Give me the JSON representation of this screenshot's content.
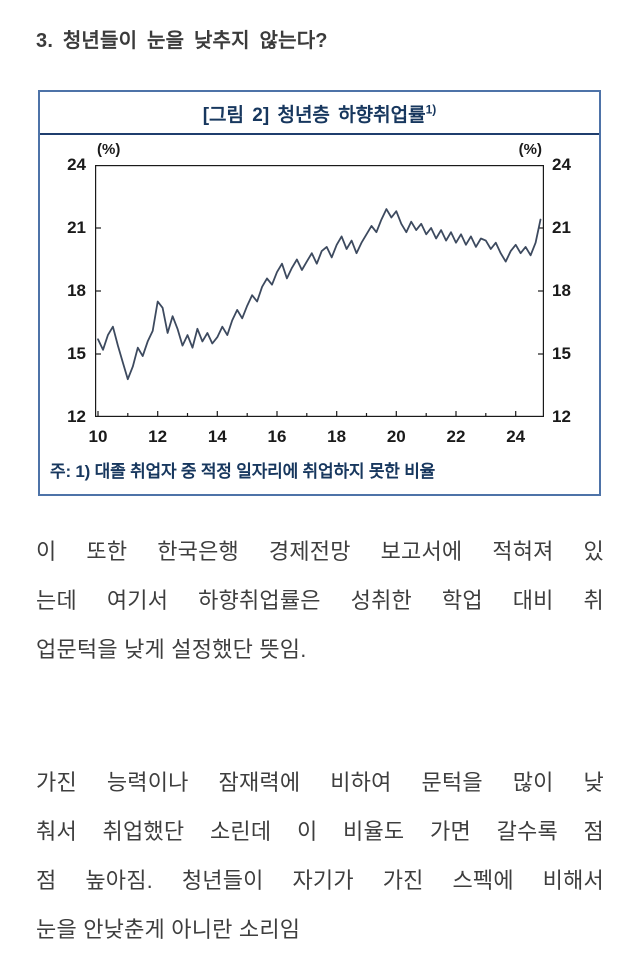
{
  "page": {
    "heading": "3. 청년들이 눈을 낮추지 않는다?"
  },
  "figure": {
    "title_main": "[그림 2] 청년층 하향취업률",
    "title_sup": "1)",
    "unit_left": "(%)",
    "unit_right": "(%)",
    "note": "주: 1) 대졸 취업자 중 적정 일자리에 취업하지 못한 비율",
    "colors": {
      "box_border": "#4e73a8",
      "title_text": "#17375e",
      "title_rule": "#1f3d6d",
      "note_text": "#17375e",
      "line": "#3d4a5f",
      "axis": "#1a1a1a"
    }
  },
  "chart_data": {
    "type": "line",
    "title": "[그림 2] 청년층 하향취업률 1)",
    "note": "주: 1) 대졸 취업자 중 적정 일자리에 취업하지 못한 비율",
    "ylabel_unit": "(%)",
    "ylim": [
      12,
      24
    ],
    "yticks": [
      12,
      15,
      18,
      21,
      24
    ],
    "xlim": [
      2009.9,
      2024.95
    ],
    "xticks": [
      2010,
      2012,
      2014,
      2016,
      2018,
      2020,
      2022,
      2024
    ],
    "xtick_labels": [
      "10",
      "12",
      "14",
      "16",
      "18",
      "20",
      "22",
      "24"
    ],
    "x_start": 2010.0,
    "x_step": 0.16667,
    "grid": false,
    "legend": false,
    "series": [
      {
        "name": "청년층 하향취업률(%)",
        "values": [
          15.7,
          15.2,
          15.9,
          16.3,
          15.4,
          14.6,
          13.8,
          14.4,
          15.3,
          14.9,
          15.6,
          16.1,
          17.5,
          17.2,
          16.0,
          16.8,
          16.2,
          15.4,
          15.9,
          15.3,
          16.2,
          15.6,
          16.0,
          15.5,
          15.8,
          16.3,
          15.9,
          16.6,
          17.1,
          16.7,
          17.3,
          17.8,
          17.5,
          18.2,
          18.6,
          18.3,
          18.9,
          19.3,
          18.6,
          19.1,
          19.5,
          19.0,
          19.4,
          19.8,
          19.3,
          19.9,
          20.1,
          19.6,
          20.2,
          20.6,
          20.0,
          20.4,
          19.8,
          20.3,
          20.7,
          21.1,
          20.8,
          21.4,
          21.9,
          21.5,
          21.8,
          21.2,
          20.8,
          21.3,
          20.9,
          21.2,
          20.7,
          21.0,
          20.5,
          20.9,
          20.4,
          20.8,
          20.3,
          20.7,
          20.2,
          20.6,
          20.1,
          20.5,
          20.4,
          20.0,
          20.3,
          19.8,
          19.4,
          19.9,
          20.2,
          19.8,
          20.1,
          19.7,
          20.3,
          21.4
        ]
      }
    ]
  },
  "body": {
    "paragraph1_lines": [
      "이 또한 한국은행 경제전망 보고서에 적혀져 있",
      "는데 여기서 하향취업률은 성취한 학업 대비 취",
      "업문턱을 낮게 설정했단 뜻임."
    ],
    "paragraph2_lines": [
      "가진 능력이나 잠재력에 비하여 문턱을 많이 낮",
      "춰서 취업했단 소린데 이 비율도 가면 갈수록 점",
      "점 높아짐. 청년들이 자기가 가진 스펙에 비해서",
      "눈을 안낮춘게 아니란 소리임"
    ]
  }
}
